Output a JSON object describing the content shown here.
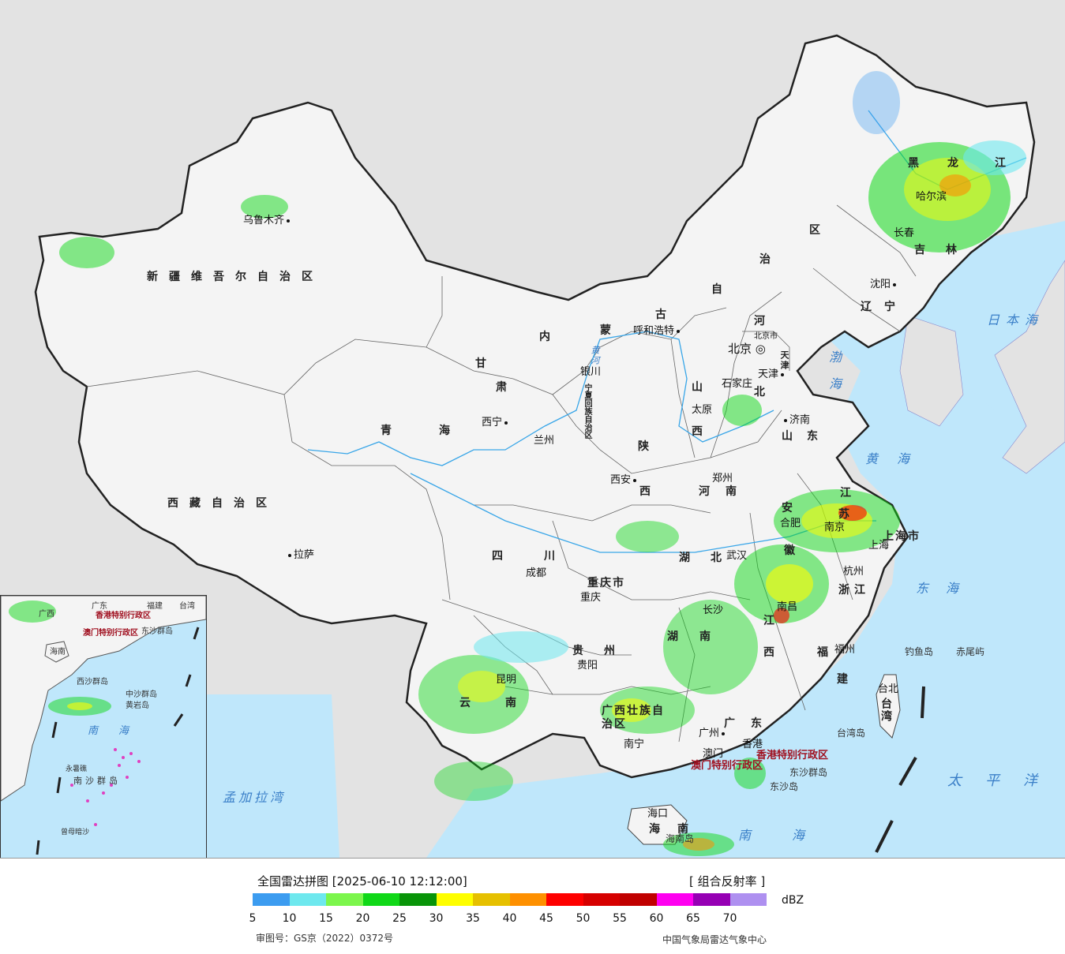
{
  "map": {
    "provinces": [
      {
        "id": "xinjiang",
        "text": "新疆维吾尔自治区"
      },
      {
        "id": "xizang",
        "text": "西藏自治区"
      },
      {
        "id": "qinghai",
        "text": "青海"
      },
      {
        "id": "gansu",
        "text": "甘"
      },
      {
        "id": "gansu2",
        "text": "肃"
      },
      {
        "id": "neimenggu",
        "text": "内"
      },
      {
        "id": "neimenggu2",
        "text": "蒙"
      },
      {
        "id": "neimenggu3",
        "text": "古"
      },
      {
        "id": "neimenggu4",
        "text": "自"
      },
      {
        "id": "neimenggu5",
        "text": "治"
      },
      {
        "id": "neimenggu6",
        "text": "区"
      },
      {
        "id": "heilongjiang",
        "text": "黑"
      },
      {
        "id": "heilongjiang2",
        "text": "龙"
      },
      {
        "id": "heilongjiang3",
        "text": "江"
      },
      {
        "id": "jilin",
        "text": "吉"
      },
      {
        "id": "jilin2",
        "text": "林"
      },
      {
        "id": "liaoning",
        "text": "辽宁"
      },
      {
        "id": "hebei",
        "text": "河"
      },
      {
        "id": "hebei2",
        "text": "北"
      },
      {
        "id": "shanxi",
        "text": "山"
      },
      {
        "id": "shanxi2",
        "text": "西"
      },
      {
        "id": "shandong",
        "text": "山东"
      },
      {
        "id": "shaanxi",
        "text": "陕"
      },
      {
        "id": "shaanxi2",
        "text": "西"
      },
      {
        "id": "henan",
        "text": "河南"
      },
      {
        "id": "sichuan",
        "text": "四川"
      },
      {
        "id": "chongqing",
        "text": "重庆市"
      },
      {
        "id": "hubei",
        "text": "湖北"
      },
      {
        "id": "hunan",
        "text": "湖"
      },
      {
        "id": "hunan2",
        "text": "南"
      },
      {
        "id": "guizhou",
        "text": "贵州"
      },
      {
        "id": "yunnan",
        "text": "云"
      },
      {
        "id": "yunnan2",
        "text": "南"
      },
      {
        "id": "guangxi",
        "text": "广西壮族自治区"
      },
      {
        "id": "guangdong",
        "text": "广东"
      },
      {
        "id": "jiangxi",
        "text": "江"
      },
      {
        "id": "jiangxi2",
        "text": "西"
      },
      {
        "id": "fujian",
        "text": "福"
      },
      {
        "id": "fujian2",
        "text": "建"
      },
      {
        "id": "zhejiang",
        "text": "浙江"
      },
      {
        "id": "anhui",
        "text": "安"
      },
      {
        "id": "anhui2",
        "text": "徽"
      },
      {
        "id": "jiangsu",
        "text": "江"
      },
      {
        "id": "jiangsu2",
        "text": "苏"
      },
      {
        "id": "shanghai",
        "text": "上海市"
      },
      {
        "id": "hainan",
        "text": "海南"
      },
      {
        "id": "taiwan",
        "text": "台湾"
      },
      {
        "id": "tianjin",
        "text": "天津"
      },
      {
        "id": "ningxia",
        "text": "宁夏回族自治区"
      }
    ],
    "cities": [
      {
        "id": "urumqi",
        "text": "乌鲁木齐"
      },
      {
        "id": "lhasa",
        "text": "拉萨"
      },
      {
        "id": "xining",
        "text": "西宁"
      },
      {
        "id": "lanzhou",
        "text": "兰州"
      },
      {
        "id": "yinchuan",
        "text": "银川"
      },
      {
        "id": "hohhot",
        "text": "呼和浩特"
      },
      {
        "id": "beijing",
        "text": "北京"
      },
      {
        "id": "beijingshi",
        "text": "北京市"
      },
      {
        "id": "tianjin",
        "text": "天津"
      },
      {
        "id": "shijiazhuang",
        "text": "石家庄"
      },
      {
        "id": "taiyuan",
        "text": "太原"
      },
      {
        "id": "jinan",
        "text": "济南"
      },
      {
        "id": "xian",
        "text": "西安"
      },
      {
        "id": "zhengzhou",
        "text": "郑州"
      },
      {
        "id": "chengdu",
        "text": "成都"
      },
      {
        "id": "chongqing",
        "text": "重庆"
      },
      {
        "id": "wuhan",
        "text": "武汉"
      },
      {
        "id": "changsha",
        "text": "长沙"
      },
      {
        "id": "guiyang",
        "text": "贵阳"
      },
      {
        "id": "kunming",
        "text": "昆明"
      },
      {
        "id": "nanning",
        "text": "南宁"
      },
      {
        "id": "guangzhou",
        "text": "广州"
      },
      {
        "id": "nanchang",
        "text": "南昌"
      },
      {
        "id": "fuzhou",
        "text": "福州"
      },
      {
        "id": "hangzhou",
        "text": "杭州"
      },
      {
        "id": "hefei",
        "text": "合肥"
      },
      {
        "id": "nanjing",
        "text": "南京"
      },
      {
        "id": "shanghai",
        "text": "上海"
      },
      {
        "id": "haikou",
        "text": "海口"
      },
      {
        "id": "taibei",
        "text": "台北"
      },
      {
        "id": "shenyang",
        "text": "沈阳"
      },
      {
        "id": "changchun",
        "text": "长春"
      },
      {
        "id": "harbin",
        "text": "哈尔滨"
      },
      {
        "id": "macau",
        "text": "澳门"
      },
      {
        "id": "hongkong",
        "text": "香港"
      }
    ],
    "special": [
      {
        "id": "hk",
        "text": "香港特别行政区"
      },
      {
        "id": "mo",
        "text": "澳门特别行政区"
      }
    ],
    "seas": [
      {
        "id": "japan-sea",
        "text": "日本海"
      },
      {
        "id": "bohai",
        "text": "渤海"
      },
      {
        "id": "yellow-sea",
        "text": "黄海"
      },
      {
        "id": "east-china-sea",
        "text": "东海"
      },
      {
        "id": "pacific",
        "text": "太平洋"
      },
      {
        "id": "south-china-sea",
        "text": "南海"
      },
      {
        "id": "bengal",
        "text": "孟加拉湾"
      },
      {
        "id": "yellow-river",
        "text": "黄河"
      }
    ],
    "islands": [
      {
        "id": "diaoyu",
        "text": "钓鱼岛"
      },
      {
        "id": "chiwei",
        "text": "赤尾屿"
      },
      {
        "id": "dongsha",
        "text": "东沙群岛"
      },
      {
        "id": "dongsha2",
        "text": "东沙岛"
      },
      {
        "id": "taiwan-island",
        "text": "台湾岛"
      },
      {
        "id": "hainan-island",
        "text": "海南岛"
      }
    ]
  },
  "inset": {
    "labels": [
      {
        "id": "i-guangxi",
        "text": "广西"
      },
      {
        "id": "i-guangdong",
        "text": "广东"
      },
      {
        "id": "i-fujian",
        "text": "福建"
      },
      {
        "id": "i-taiwan",
        "text": "台湾"
      },
      {
        "id": "i-hk",
        "text": "香港特别行政区"
      },
      {
        "id": "i-mo",
        "text": "澳门特别行政区"
      },
      {
        "id": "i-dongsha",
        "text": "东沙群岛"
      },
      {
        "id": "i-hainan",
        "text": "海南"
      },
      {
        "id": "i-xisha",
        "text": "西沙群岛"
      },
      {
        "id": "i-zhongsha",
        "text": "中沙群岛"
      },
      {
        "id": "i-huangyan",
        "text": "黄岩岛"
      },
      {
        "id": "i-sea",
        "text": "南海"
      },
      {
        "id": "i-yongshu",
        "text": "永暑礁"
      },
      {
        "id": "i-nansha",
        "text": "南沙群岛"
      },
      {
        "id": "i-zengmu",
        "text": "曾母暗沙"
      }
    ]
  },
  "legend": {
    "title": "全国雷达拼图 [2025-06-10 12:12:00]",
    "product": "[ 组合反射率 ]",
    "unit": "dBZ",
    "colors": [
      "#3c9cf0",
      "#6ee8ee",
      "#7cf64c",
      "#10d818",
      "#089408",
      "#fefe00",
      "#e6c000",
      "#fe9000",
      "#fe0000",
      "#d60000",
      "#c00000",
      "#fe00f0",
      "#9600b4",
      "#ae90f0"
    ],
    "ticks": [
      "5",
      "10",
      "15",
      "20",
      "25",
      "30",
      "35",
      "40",
      "45",
      "50",
      "55",
      "60",
      "65",
      "70"
    ],
    "review_no": "审图号：GS京（2022）0372号",
    "source": "中国气象局雷达气象中心"
  }
}
